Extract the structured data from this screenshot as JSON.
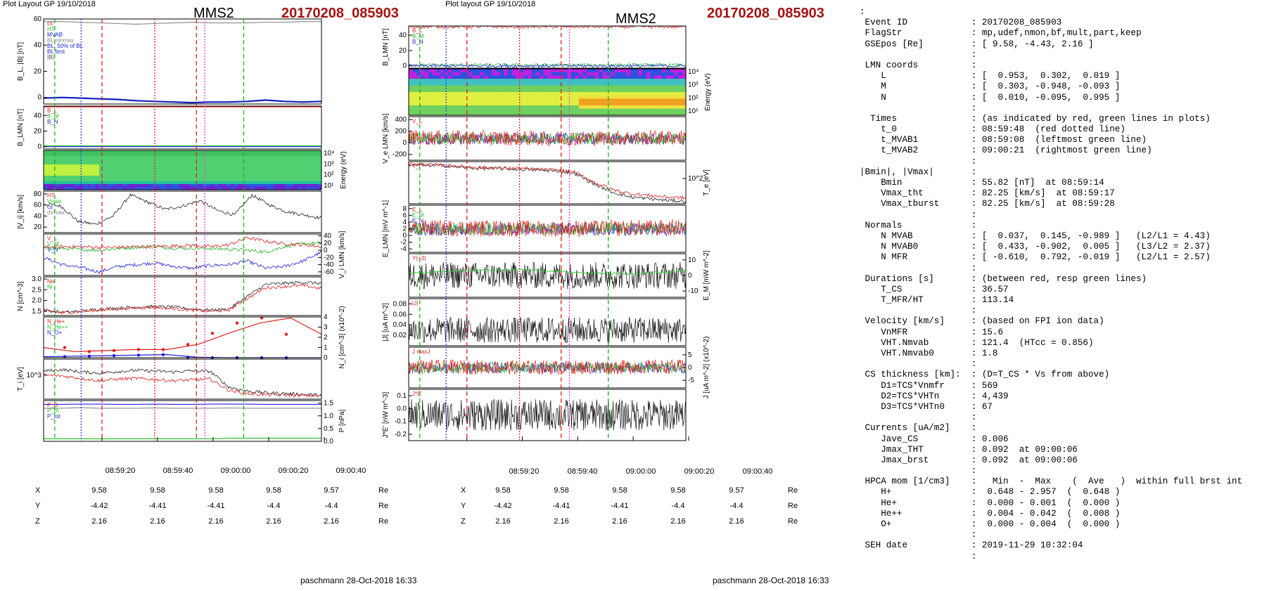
{
  "left": {
    "plot_label": "Plot Layout GP 19/10/2018",
    "spacecraft": "MMS2",
    "event": "20170208_085903",
    "footer": "paschmann 28-Oct-2018 16:33",
    "time_ticks": [
      "08:59:20",
      "08:59:40",
      "09:00:00",
      "09:00:20",
      "09:00:40"
    ],
    "coords": {
      "labels": [
        "X",
        "Y",
        "Z"
      ],
      "unit": "Re",
      "X": [
        "9.58",
        "9.58",
        "9.58",
        "9.58",
        "9.57"
      ],
      "Y": [
        "-4.42",
        "-4.41",
        "-4.41",
        "-4.4",
        "-4.4"
      ],
      "Z": [
        "2.16",
        "2.16",
        "2.16",
        "2.16",
        "2.16"
      ]
    }
  },
  "middle": {
    "plot_label": "Plot layout GP 19/10/2018",
    "spacecraft": "MMS2",
    "event": "20170208_085903",
    "footer": "paschmann 28-Oct-2018 16:33",
    "time_ticks": [
      "08:59:20",
      "08:59:40",
      "09:00:00",
      "09:00:20",
      "09:00:40"
    ],
    "coords": {
      "labels": [
        "X",
        "Y",
        "Z"
      ],
      "unit": "Re",
      "X": [
        "9.58",
        "9.58",
        "9.58",
        "9.58",
        "9.57"
      ],
      "Y": [
        "-4.42",
        "-4.41",
        "-4.41",
        "-4.4",
        "-4.4"
      ],
      "Z": [
        "2.16",
        "2.16",
        "2.16",
        "2.16",
        "2.16"
      ]
    }
  },
  "right_panel": {
    "lines": [
      ":",
      " Event ID            : 20170208_085903",
      " FlagStr             : mp,udef,nmon,bf,mult,part,keep",
      " GSEpos [Re]         : [ 9.58, -4.43, 2.16 ]",
      "                     :",
      " LMN coords          :",
      "    L                : [  0.953,  0.302,  0.019 ]",
      "    M                : [  0.303, -0.948, -0.093 ]",
      "    N                : [  0.010, -0.095,  0.995 ]",
      "                     :",
      "  Times              : (as indicated by red, green lines in plots)",
      "    t_0              : 08:59:48  (red dotted line)",
      "    t_MVAB1          : 08:59:08  (leftmost green line)",
      "    t_MVAB2          : 09:00:21  (rightmost green line)",
      "                     :",
      "|Bmin|, |Vmax|       :",
      "    Bmin             : 55.82 [nT]  at 08:59:14",
      "    Vmax_tht         : 82.25 [km/s]  at 08:59:17",
      "    Vmax_tburst      : 82.25 [km/s]  at 08:59:28",
      "                     :",
      " Normals             :",
      "    N MVAB           : [  0.037,  0.145, -0.989 ]   (L2/L1 = 4.43)",
      "    N MVAB0          : [  0.433, -0.902,  0.005 ]   (L3/L2 = 2.37)",
      "    N MFR            : [ -0.610,  0.792, -0.019 ]   (L2/L1 = 2.57)",
      "                     :",
      " Durations [s]       : (between red, resp green lines)",
      "    T_CS             : 36.57",
      "    T_MFR/HT         : 113.14",
      "                     :",
      " Velocity [km/s]     : (based on FPI ion data)",
      "    VnMFR            : 15.6",
      "    VHT.Nmvab        : 121.4  (HTcc = 0.856)",
      "    VHT.Nmvab0       : 1.8",
      "                     :",
      " CS thickness [km]:  : (D=T_CS * Vs from above)",
      "    D1=TCS*Vnmfr     : 569",
      "    D2=TCS*VHTn      : 4,439",
      "    D3=TCS*VHTn0     : 67",
      "                     :",
      " Currents [uA/m2]    :",
      "    Jave_CS          : 0.006",
      "    Jmax_THT         : 0.092  at 09:00:06",
      "    Jmax_brst        : 0.092  at 09:00:06",
      "                     :",
      " HPCA mom [1/cm3]    :   Min  -  Max    (  Ave   )  within full brst int",
      "    H+               :  0.648 - 2.957  (  0.648 )",
      "    He+              :  0.000 - 0.001  (  0.000 )",
      "    He++             :  0.004 - 0.042  (  0.008 )",
      "    O+               :  0.000 - 0.004  (  0.000 )",
      "                     :",
      " SEH date            : 2019-11-29 10:32:04",
      "                     :"
    ]
  },
  "chart_data": [
    {
      "type": "line",
      "panel": "left-1",
      "ylabel": "B_L, |B| [nT]",
      "yticks": [
        "0",
        "20",
        "40",
        "60"
      ],
      "ylim": [
        -5,
        60
      ],
      "legend": [
        "cs",
        "HT",
        "MVAB",
        "BLminmax",
        "BL, 50% of BL",
        "BL brst",
        "|B|"
      ],
      "series": [
        {
          "name": "|B|",
          "color": "#888888",
          "values": [
            58,
            58,
            57.5,
            57,
            56.5,
            56,
            56.5,
            57,
            57.5,
            57,
            57,
            57,
            57.5,
            57.5,
            58,
            58
          ]
        },
        {
          "name": "BL brst",
          "color": "#1020c0",
          "values": [
            -0.5,
            0,
            -0.5,
            -1,
            -1.5,
            -2.5,
            -3,
            -3.5,
            -4,
            -3.5,
            -3.5,
            -3,
            -2,
            -3,
            -3.5,
            -3
          ]
        }
      ]
    },
    {
      "type": "line",
      "panel": "left-2",
      "ylabel": "B_LMN [nT]",
      "yticks": [
        "0",
        "20",
        "40"
      ],
      "ylim": [
        -3,
        52
      ],
      "legend": [
        "B_L",
        "B_M",
        "B_N"
      ],
      "series": [
        {
          "name": "B_L",
          "color": "#e02020",
          "values": [
            51,
            51,
            51,
            51,
            51,
            51,
            51,
            51,
            51,
            51,
            51,
            51,
            51,
            51,
            51,
            51
          ]
        },
        {
          "name": "B_M",
          "color": "#20c020",
          "values": [
            1,
            1,
            1,
            1,
            1,
            1,
            1,
            1,
            1,
            1,
            1,
            1,
            1,
            1,
            1,
            1
          ]
        },
        {
          "name": "B_N",
          "color": "#2020e0",
          "values": [
            0,
            0,
            0,
            0,
            0,
            0,
            0,
            0,
            0,
            0,
            0,
            0,
            0,
            0,
            0,
            0
          ]
        }
      ]
    },
    {
      "type": "heatmap",
      "panel": "left-3",
      "ylabel": "Energy (eV)",
      "yticks": [
        "10^1",
        "10^2",
        "10^3",
        "10^4"
      ]
    },
    {
      "type": "line",
      "panel": "left-4",
      "ylabel": "|V_i| [km/s]",
      "yticks": [
        "20",
        "40",
        "60",
        "80"
      ],
      "ylim": [
        10,
        85
      ],
      "legend": [
        "HT",
        "Vmax",
        "cs",
        "dVmax"
      ],
      "series": [
        {
          "name": "|V_i|",
          "color": "#222222",
          "values": [
            62,
            58,
            30,
            25,
            40,
            78,
            65,
            52,
            58,
            68,
            50,
            42,
            78,
            60,
            48,
            42,
            36
          ]
        }
      ]
    },
    {
      "type": "line",
      "panel": "left-5",
      "ylabel": "V_i LMN [km/s]",
      "yticks": [
        "-60",
        "-40",
        "-20",
        "0",
        "20",
        "40"
      ],
      "ylim": [
        -70,
        45
      ],
      "legend": [
        "V_L",
        "V_M",
        "V_N"
      ],
      "series": [
        {
          "name": "V_L",
          "color": "#2020e0",
          "values": [
            -20,
            -40,
            -48,
            -60,
            -45,
            -40,
            -35,
            -45,
            -50,
            -42,
            -40,
            -30,
            -50,
            -45,
            -30,
            -5
          ]
        },
        {
          "name": "V_M",
          "color": "#20b020",
          "values": [
            5,
            5,
            2,
            0,
            5,
            8,
            10,
            6,
            5,
            5,
            3,
            0,
            -5,
            10,
            18,
            20
          ]
        },
        {
          "name": "V_N",
          "color": "#e02020",
          "values": [
            8,
            10,
            10,
            8,
            8,
            10,
            10,
            12,
            14,
            10,
            15,
            35,
            25,
            18,
            15,
            10
          ]
        }
      ]
    },
    {
      "type": "line",
      "panel": "left-6",
      "ylabel": "N [cm^-3]",
      "yticks": [
        "1.5",
        "2.0",
        "2.5",
        "3.0"
      ],
      "ylim": [
        1.3,
        3.1
      ],
      "legend": [
        "Ne",
        "Ni"
      ],
      "series": [
        {
          "name": "Ni",
          "color": "#222222",
          "values": [
            1.55,
            1.45,
            1.5,
            1.6,
            1.65,
            1.7,
            1.72,
            1.7,
            1.6,
            1.55,
            1.6,
            2.2,
            2.75,
            2.8,
            2.85,
            2.8
          ]
        },
        {
          "name": "Ne",
          "color": "#e02020",
          "values": [
            1.55,
            1.42,
            1.48,
            1.55,
            1.6,
            1.65,
            1.68,
            1.62,
            1.55,
            1.5,
            1.55,
            2.1,
            2.6,
            2.65,
            2.7,
            2.55
          ]
        }
      ]
    },
    {
      "type": "line",
      "panel": "left-7",
      "ylabel": "N_i [cm^-3] (x10^-2)",
      "yticks": [
        "0",
        "1",
        "2",
        "3",
        "4"
      ],
      "ylim": [
        0,
        4
      ],
      "legend": [
        "N_He+",
        "N_He++",
        "N_O+"
      ],
      "series": [
        {
          "name": "N_He++",
          "color": "#e02020",
          "values": [
            1,
            0.6,
            0.7,
            0.8,
            0.8,
            1.3,
            2.4,
            3.4,
            3.9,
            2.3
          ]
        },
        {
          "name": "N_O+",
          "color": "#2020e0",
          "values": [
            0.1,
            0.15,
            0.2,
            0.25,
            0.3,
            0.05,
            0,
            0,
            0,
            0
          ]
        }
      ]
    },
    {
      "type": "line",
      "panel": "left-8",
      "ylabel": "T_i [eV]",
      "yticks": [
        "10^3"
      ],
      "legend": [],
      "series": [
        {
          "name": "T_i par",
          "color": "#222222",
          "values": [
            1000,
            1040,
            980,
            950,
            990,
            1020,
            1000,
            980,
            1010,
            990,
            600,
            500,
            460,
            440,
            420,
            400
          ]
        },
        {
          "name": "T_i perp",
          "color": "#e02020",
          "values": [
            900,
            880,
            820,
            760,
            800,
            820,
            790,
            760,
            780,
            800,
            520,
            440,
            410,
            400,
            390,
            380
          ]
        }
      ]
    },
    {
      "type": "line",
      "panel": "left-9",
      "ylabel": "P [nPa]",
      "yticks": [
        "0.0",
        "0.5",
        "1.0",
        "1.5"
      ],
      "ylim": [
        0,
        1.6
      ],
      "legend": [
        "P_B",
        "P_th",
        "P_tot"
      ],
      "series": [
        {
          "name": "P_tot",
          "color": "#2020e0",
          "values": [
            1.45,
            1.45,
            1.46,
            1.46,
            1.45,
            1.45,
            1.46,
            1.45,
            1.45,
            1.46,
            1.46,
            1.46,
            1.45,
            1.45,
            1.45,
            1.45
          ]
        },
        {
          "name": "P_B",
          "color": "#888888",
          "values": [
            1.3,
            1.3,
            1.32,
            1.3,
            1.3,
            1.3,
            1.31,
            1.3,
            1.3,
            1.3,
            1.31,
            1.3,
            1.3,
            1.3,
            1.3,
            1.3
          ]
        },
        {
          "name": "P_th",
          "color": "#20c020",
          "values": [
            0.1,
            0.1,
            0.1,
            0.1,
            0.1,
            0.1,
            0.1,
            0.1,
            0.1,
            0.1,
            0.12,
            0.12,
            0.12,
            0.12,
            0.12,
            0.12
          ]
        }
      ]
    },
    {
      "type": "line",
      "panel": "mid-1",
      "ylabel": "B_LMN [nT]",
      "yticks": [
        "0",
        "20",
        "40"
      ],
      "ylim": [
        -3,
        52
      ],
      "legend": [
        "B_L",
        "B_M",
        "B_N"
      ],
      "series": [
        {
          "name": "B_L",
          "color": "#e02020",
          "values": [
            51,
            51,
            51,
            51,
            51,
            51,
            51,
            51,
            51,
            51,
            51,
            51,
            51,
            51,
            51,
            51
          ]
        },
        {
          "name": "B_M",
          "color": "#20c020",
          "values": [
            1,
            1,
            1,
            1,
            1,
            1,
            1,
            1,
            1,
            1,
            1,
            1,
            1,
            1,
            1,
            1
          ]
        },
        {
          "name": "B_N",
          "color": "#2020e0",
          "values": [
            0,
            0,
            0,
            0,
            0,
            0,
            0,
            0,
            0,
            0,
            0,
            0,
            0,
            0,
            0,
            0
          ]
        }
      ]
    },
    {
      "type": "heatmap",
      "panel": "mid-2",
      "ylabel": "Energy (eV)",
      "yticks": [
        "10^1",
        "10^2",
        "10^3",
        "10^4"
      ]
    },
    {
      "type": "line",
      "panel": "mid-3",
      "ylabel": "V_e LMN [km/s]",
      "yticks": [
        "-200",
        "0",
        "200",
        "400"
      ],
      "ylim": [
        -300,
        450
      ],
      "legend": [
        "V_L"
      ],
      "series": []
    },
    {
      "type": "line",
      "panel": "mid-4",
      "ylabel": "T_e [eV]",
      "yticks": [
        "10^2"
      ],
      "legend": [
        "T_i"
      ],
      "series": [
        {
          "name": "T_e par",
          "color": "#222222",
          "values": [
            320,
            318,
            315,
            305,
            300,
            298,
            295,
            290,
            285,
            270,
            210,
            160,
            130,
            120,
            110,
            105
          ]
        },
        {
          "name": "T_e perp",
          "color": "#e02020",
          "values": [
            325,
            322,
            318,
            310,
            305,
            302,
            300,
            295,
            290,
            278,
            220,
            175,
            150,
            140,
            130,
            125
          ]
        }
      ]
    },
    {
      "type": "line",
      "panel": "mid-5",
      "ylabel": "E_LMN [mV m^-1]",
      "yticks": [
        "-4",
        "-2",
        "0",
        "2",
        "4",
        "6",
        "8"
      ],
      "ylim": [
        -5,
        9
      ],
      "legend": [
        "E_L",
        "E_M",
        "E_N"
      ],
      "series": []
    },
    {
      "type": "line",
      "panel": "mid-6",
      "ylabel": "E_M [mW m^-2]",
      "yticks": [
        "-10",
        "0",
        "10"
      ],
      "ylim": [
        -14,
        14
      ],
      "legend": [
        "Y(+3)"
      ],
      "series": []
    },
    {
      "type": "line",
      "panel": "mid-7",
      "ylabel": "|J| [uA m^-2]",
      "yticks": [
        "0.02",
        "0.04",
        "0.06",
        "0.08"
      ],
      "ylim": [
        0,
        0.09
      ],
      "legend": [
        "|J|"
      ],
      "series": []
    },
    {
      "type": "line",
      "panel": "mid-8",
      "ylabel": "J [uA m^-2] (x10^-2)",
      "yticks": [
        "-5",
        "0",
        "5"
      ],
      "ylim": [
        -8,
        8
      ],
      "legend": [
        "J maxJ"
      ],
      "series": []
    },
    {
      "type": "line",
      "panel": "mid-9",
      "ylabel": "J*E' [nW m^-3]",
      "yticks": [
        "-0.2",
        "-0.1",
        "0.0",
        "0.1"
      ],
      "ylim": [
        -0.25,
        0.15
      ],
      "legend": [
        "J*E'"
      ],
      "series": []
    }
  ]
}
